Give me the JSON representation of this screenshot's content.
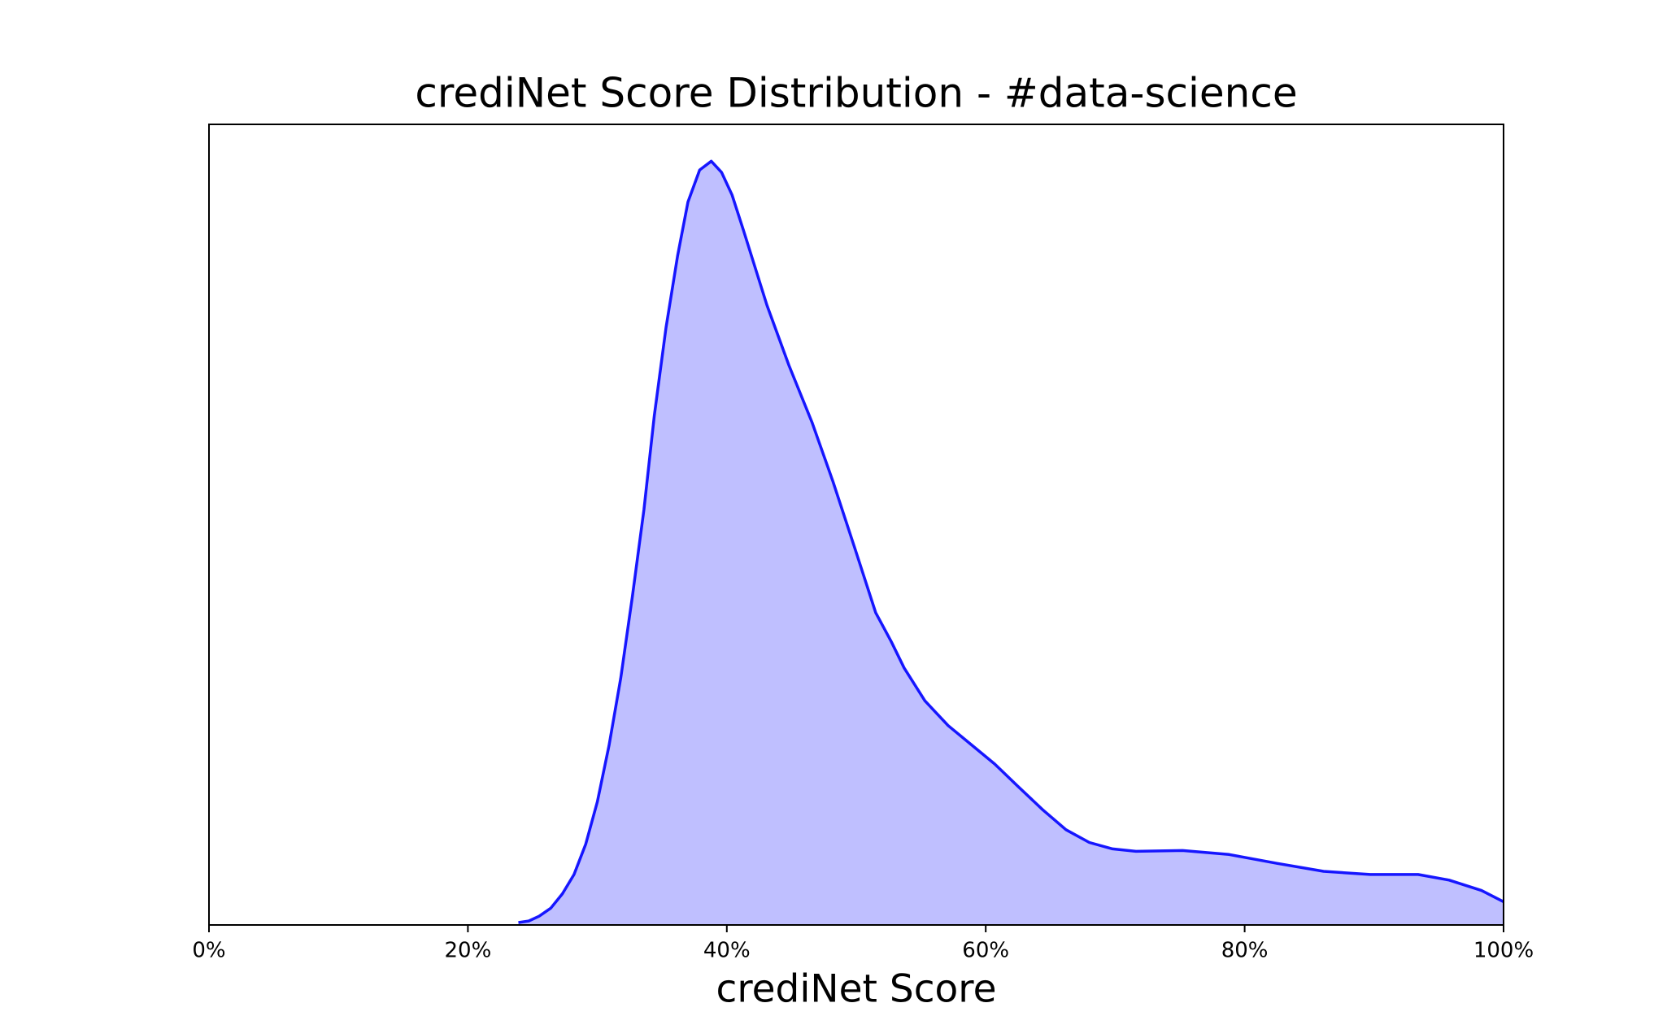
{
  "chart_data": {
    "type": "area",
    "title": "crediNet Score Distribution - #data-science",
    "xlabel": "crediNet Score",
    "x": [
      23.9,
      24.7,
      25.5,
      26.4,
      27.3,
      28.2,
      29.1,
      30.0,
      30.9,
      31.8,
      32.7,
      33.6,
      34.4,
      35.3,
      36.2,
      37.0,
      37.9,
      38.8,
      39.6,
      40.4,
      41.3,
      43.1,
      44.8,
      46.6,
      48.2,
      49.9,
      51.5,
      52.7,
      53.7,
      55.3,
      57.1,
      58.9,
      60.7,
      62.5,
      64.4,
      66.2,
      68.0,
      69.8,
      71.6,
      75.2,
      78.8,
      82.5,
      86.1,
      89.7,
      93.4,
      95.8,
      98.3,
      100
    ],
    "values": [
      0.003,
      0.005,
      0.011,
      0.021,
      0.039,
      0.063,
      0.101,
      0.154,
      0.224,
      0.308,
      0.41,
      0.519,
      0.636,
      0.746,
      0.836,
      0.903,
      0.943,
      0.954,
      0.94,
      0.912,
      0.867,
      0.774,
      0.699,
      0.627,
      0.554,
      0.47,
      0.39,
      0.354,
      0.321,
      0.28,
      0.249,
      0.225,
      0.201,
      0.173,
      0.144,
      0.119,
      0.103,
      0.095,
      0.092,
      0.093,
      0.088,
      0.077,
      0.067,
      0.063,
      0.063,
      0.056,
      0.043,
      0.029
    ],
    "color": "#0000ff",
    "xlim": [
      0,
      100
    ],
    "ylim": [
      0,
      1
    ],
    "xticks": [
      {
        "value": 0,
        "label": "0%"
      },
      {
        "value": 20,
        "label": "20%"
      },
      {
        "value": 40,
        "label": "40%"
      },
      {
        "value": 60,
        "label": "60%"
      },
      {
        "value": 80,
        "label": "80%"
      },
      {
        "value": 100,
        "label": "100%"
      }
    ]
  }
}
